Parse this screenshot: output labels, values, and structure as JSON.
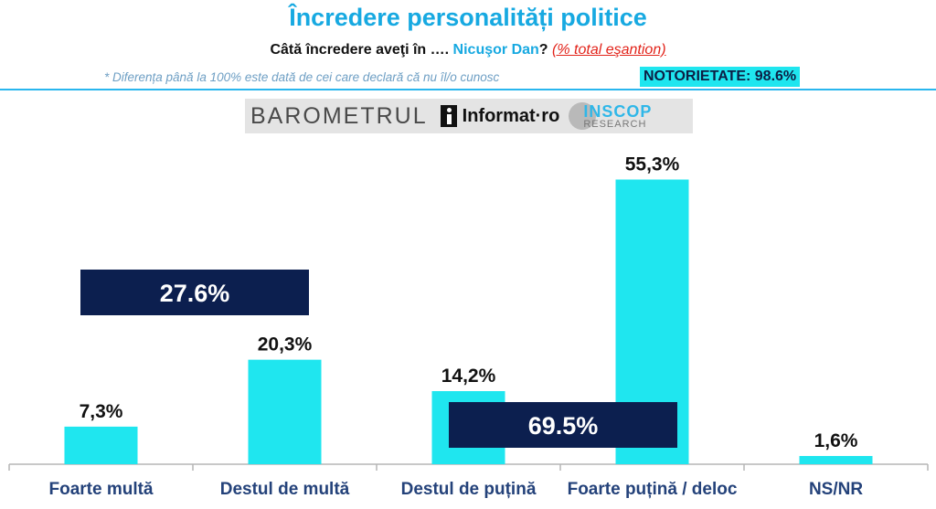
{
  "header": {
    "title": "Încredere personalități politice",
    "question_prefix": "Câtă încredere aveţi în ….",
    "person": "Nicuşor Dan",
    "question_mark": "?",
    "sample_note": "(% total eşantion)",
    "footnote": "* Diferența până la 100% este dată de cei care declară că nu îl/o cunosc",
    "notoriety": "NOTORIETATE: 98.6%"
  },
  "logo": {
    "barometrul": "BAROMETRUL",
    "informat": "Informat·ro",
    "inscop": "INSCOP",
    "inscop_sub": "RESEARCH"
  },
  "colors": {
    "bar": "#1fe6ef",
    "summary_box": "#0c1f4f",
    "title": "#17a9e1",
    "category_label": "#24427a"
  },
  "chart_data": {
    "type": "bar",
    "title": "Încredere personalități politice",
    "categories": [
      "Foarte multă",
      "Destul de multă",
      "Destul de puțină",
      "Foarte puțină / deloc",
      "NS/NR"
    ],
    "values": [
      7.3,
      20.3,
      14.2,
      55.3,
      1.6
    ],
    "value_labels": [
      "7,3%",
      "20,3%",
      "14,2%",
      "55,3%",
      "1,6%"
    ],
    "ylim": [
      0,
      60
    ],
    "xlabel": "",
    "ylabel": "",
    "grid": false,
    "summaries": [
      {
        "label": "27.6%",
        "value": 27.6,
        "categories": [
          "Foarte multă",
          "Destul de multă"
        ]
      },
      {
        "label": "69.5%",
        "value": 69.5,
        "categories": [
          "Destul de puțină",
          "Foarte puțină / deloc"
        ]
      }
    ]
  }
}
